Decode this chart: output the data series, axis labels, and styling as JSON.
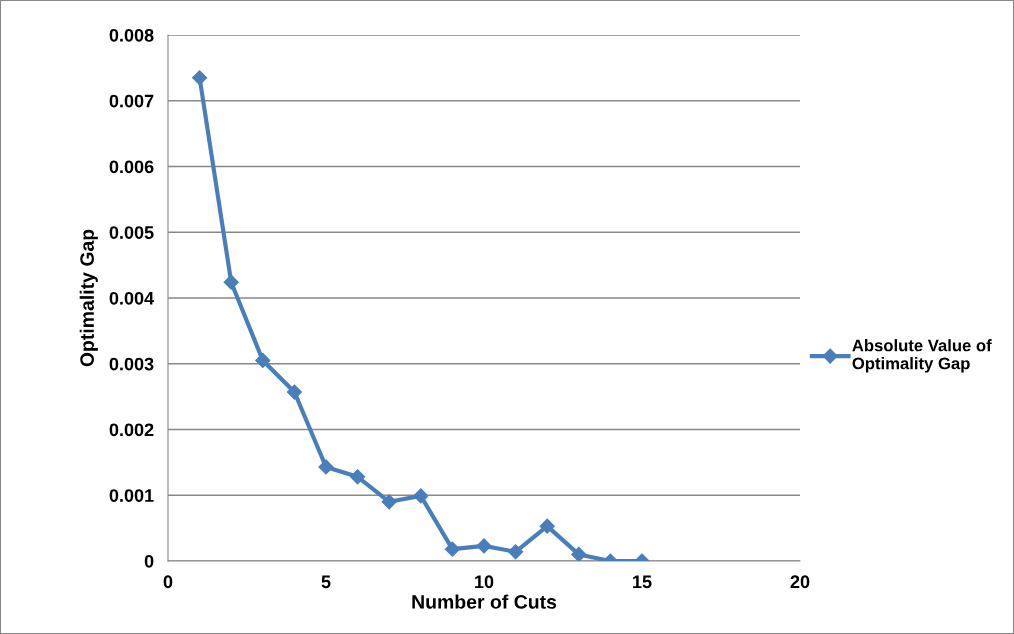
{
  "chart_data": {
    "type": "line",
    "xlabel": "Number of Cuts",
    "ylabel": "Optimality Gap",
    "x": [
      1,
      2,
      3,
      4,
      5,
      6,
      7,
      8,
      9,
      10,
      11,
      12,
      13,
      14,
      15
    ],
    "series": [
      {
        "name": "Absolute Value of\nOptimality Gap",
        "color": "#4a7ebb",
        "values": [
          0.00735,
          0.00424,
          0.00305,
          0.00257,
          0.00143,
          0.00128,
          0.0009,
          0.00099,
          0.00018,
          0.00023,
          0.00014,
          0.00053,
          0.0001,
          0,
          0
        ]
      }
    ],
    "xlim": [
      0,
      20
    ],
    "xticks": [
      0,
      5,
      10,
      15,
      20
    ],
    "ylim": [
      0,
      0.008
    ],
    "yticks": [
      {
        "value": 0,
        "label": "0"
      },
      {
        "value": 0.001,
        "label": "0.001"
      },
      {
        "value": 0.002,
        "label": "0.002"
      },
      {
        "value": 0.003,
        "label": "0.003"
      },
      {
        "value": 0.004,
        "label": "0.004"
      },
      {
        "value": 0.005,
        "label": "0.005"
      },
      {
        "value": 0.006,
        "label": "0.006"
      },
      {
        "value": 0.007,
        "label": "0.007"
      },
      {
        "value": 0.008,
        "label": "0.008"
      }
    ],
    "grid": "y",
    "legend": "right",
    "marker": "diamond",
    "line_style": "solid"
  }
}
